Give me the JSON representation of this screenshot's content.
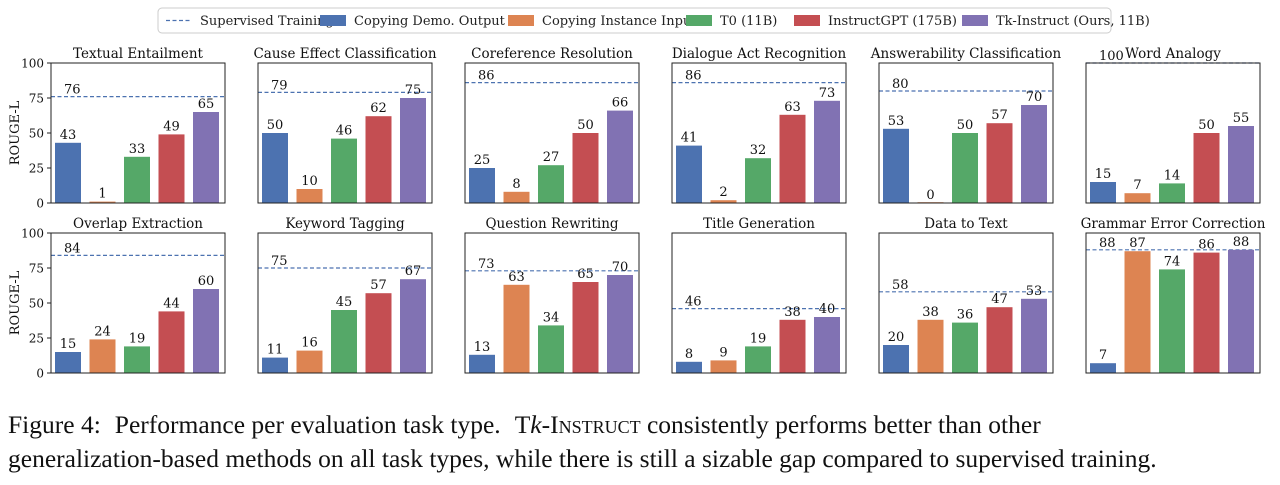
{
  "legend": [
    {
      "label": "Supervised Training",
      "kind": "dashed",
      "color": "#4c72b0"
    },
    {
      "label": "Copying Demo. Output",
      "kind": "bar",
      "color": "#4c72b0"
    },
    {
      "label": "Copying Instance Input",
      "kind": "bar",
      "color": "#dd8452"
    },
    {
      "label": "T0 (11B)",
      "kind": "bar",
      "color": "#55a868"
    },
    {
      "label": "InstructGPT (175B)",
      "kind": "bar",
      "color": "#c44e52"
    },
    {
      "label": "Tk-Instruct (Ours, 11B)",
      "kind": "bar",
      "color": "#8172b3"
    }
  ],
  "ylabel": "ROUGE-L",
  "yticks": [
    0,
    25,
    50,
    75,
    100
  ],
  "chart_data": [
    {
      "type": "bar",
      "title": "Textual Entailment",
      "ylim": [
        0,
        100
      ],
      "supervised": 76,
      "values": [
        43,
        1,
        33,
        49,
        65
      ],
      "labels": [
        "43",
        "1",
        "33",
        "49",
        "65"
      ]
    },
    {
      "type": "bar",
      "title": "Cause Effect Classification",
      "ylim": [
        0,
        100
      ],
      "supervised": 79,
      "values": [
        50,
        10,
        46,
        62,
        75
      ],
      "labels": [
        "50",
        "10",
        "46",
        "62",
        "75"
      ]
    },
    {
      "type": "bar",
      "title": "Coreference Resolution",
      "ylim": [
        0,
        100
      ],
      "supervised": 86,
      "values": [
        25,
        8,
        27,
        50,
        66
      ],
      "labels": [
        "25",
        "8",
        "27",
        "50",
        "66"
      ]
    },
    {
      "type": "bar",
      "title": "Dialogue Act Recognition",
      "ylim": [
        0,
        100
      ],
      "supervised": 86,
      "values": [
        41,
        2,
        32,
        63,
        73
      ],
      "labels": [
        "41",
        "2",
        "32",
        "63",
        "73"
      ]
    },
    {
      "type": "bar",
      "title": "Answerability Classification",
      "ylim": [
        0,
        100
      ],
      "supervised": 80,
      "values": [
        53,
        0,
        50,
        57,
        70
      ],
      "labels": [
        "53",
        "0",
        "50",
        "57",
        "70"
      ]
    },
    {
      "type": "bar",
      "title": "Word Analogy",
      "ylim": [
        0,
        100
      ],
      "supervised": 100,
      "values": [
        15,
        7,
        14,
        50,
        55
      ],
      "labels": [
        "15",
        "7",
        "14",
        "50",
        "55"
      ]
    },
    {
      "type": "bar",
      "title": "Overlap Extraction",
      "ylim": [
        0,
        100
      ],
      "supervised": 84,
      "values": [
        15,
        24,
        19,
        44,
        60
      ],
      "labels": [
        "15",
        "24",
        "19",
        "44",
        "60"
      ]
    },
    {
      "type": "bar",
      "title": "Keyword Tagging",
      "ylim": [
        0,
        100
      ],
      "supervised": 75,
      "values": [
        11,
        16,
        45,
        57,
        67
      ],
      "labels": [
        "11",
        "16",
        "45",
        "57",
        "67"
      ]
    },
    {
      "type": "bar",
      "title": "Question Rewriting",
      "ylim": [
        0,
        100
      ],
      "supervised": 73,
      "values": [
        13,
        63,
        34,
        65,
        70
      ],
      "labels": [
        "13",
        "63",
        "34",
        "65",
        "70"
      ]
    },
    {
      "type": "bar",
      "title": "Title Generation",
      "ylim": [
        0,
        100
      ],
      "supervised": 46,
      "values": [
        8,
        9,
        19,
        38,
        40
      ],
      "labels": [
        "8",
        "9",
        "19",
        "38",
        "40"
      ]
    },
    {
      "type": "bar",
      "title": "Data to Text",
      "ylim": [
        0,
        100
      ],
      "supervised": 58,
      "values": [
        20,
        38,
        36,
        47,
        53
      ],
      "labels": [
        "20",
        "38",
        "36",
        "47",
        "53"
      ]
    },
    {
      "type": "bar",
      "title": "Grammar Error Correction",
      "ylim": [
        0,
        100
      ],
      "supervised": 88,
      "values": [
        7,
        87,
        74,
        86,
        88
      ],
      "labels": [
        "7",
        "87",
        "74",
        "86",
        "88"
      ]
    }
  ],
  "caption": {
    "fig_label": "Figure 4:",
    "text1": "Performance per evaluation task type.",
    "name_t": "T",
    "name_k": "k",
    "name_rest": "-Instruct",
    "text2": "consistently performs better than other",
    "line2": "generalization-based methods on all task types, while there is still a sizable gap compared to supervised training."
  }
}
